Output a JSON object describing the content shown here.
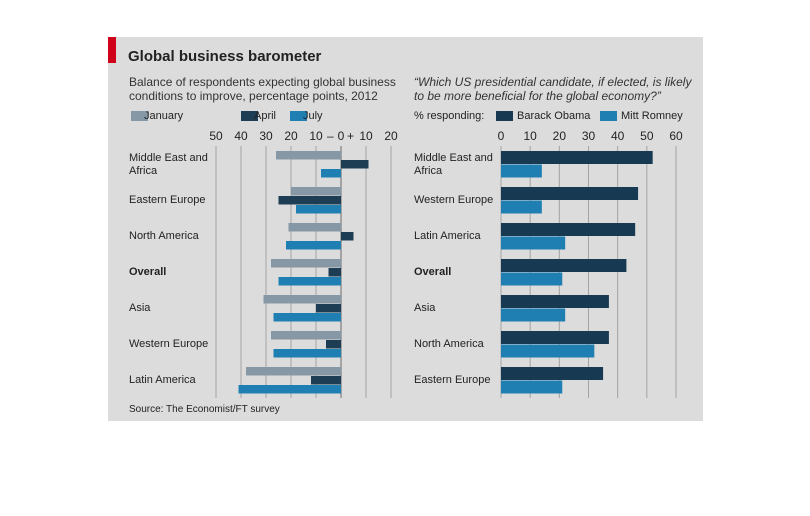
{
  "title": "Global business barometer",
  "source": "Source: The Economist/FT survey",
  "chart_data": [
    {
      "type": "hbar",
      "subtitle": [
        "Balance of respondents expecting global business",
        "conditions to improve, percentage points, 2012"
      ],
      "categories": [
        "Middle East and Africa",
        "Eastern Europe",
        "North America",
        "Overall",
        "Asia",
        "Western Europe",
        "Latin America"
      ],
      "highlight_index": 3,
      "series": [
        {
          "name": "January",
          "color": "#8697a6",
          "values": [
            -26,
            -20,
            -21,
            -28,
            -31,
            -28,
            -38
          ]
        },
        {
          "name": "April",
          "color": "#1d3d55",
          "values": [
            11,
            -25,
            5,
            -5,
            -10,
            -6,
            -12
          ]
        },
        {
          "name": "July",
          "color": "#1f7fb3",
          "values": [
            -8,
            -18,
            -22,
            -25,
            -27,
            -27,
            -41
          ]
        }
      ],
      "xlim": [
        -50,
        20
      ],
      "xticks": [
        {
          "value": -50,
          "label": "50"
        },
        {
          "value": -40,
          "label": "40"
        },
        {
          "value": -30,
          "label": "30"
        },
        {
          "value": -20,
          "label": "20"
        },
        {
          "value": -10,
          "label": "10"
        },
        0,
        10,
        20
      ],
      "sign_labels": {
        "negative": "–",
        "positive": "+"
      },
      "grid": true
    },
    {
      "type": "hbar",
      "subtitle": [
        "“Which US presidential candidate, if elected, is likely",
        "to be more beneficial for the global economy?”"
      ],
      "legend_title": "% responding:",
      "categories": [
        "Middle East and Africa",
        "Western Europe",
        "Latin America",
        "Overall",
        "Asia",
        "North America",
        "Eastern Europe"
      ],
      "highlight_index": 3,
      "series": [
        {
          "name": "Barack Obama",
          "color": "#173a52",
          "values": [
            52,
            47,
            46,
            43,
            37,
            37,
            35
          ]
        },
        {
          "name": "Mitt Romney",
          "color": "#1f7fb3",
          "values": [
            14,
            14,
            22,
            21,
            22,
            32,
            21
          ]
        }
      ],
      "xlim": [
        0,
        60
      ],
      "xticks": [
        0,
        10,
        20,
        30,
        40,
        50,
        60
      ],
      "grid": true
    }
  ]
}
